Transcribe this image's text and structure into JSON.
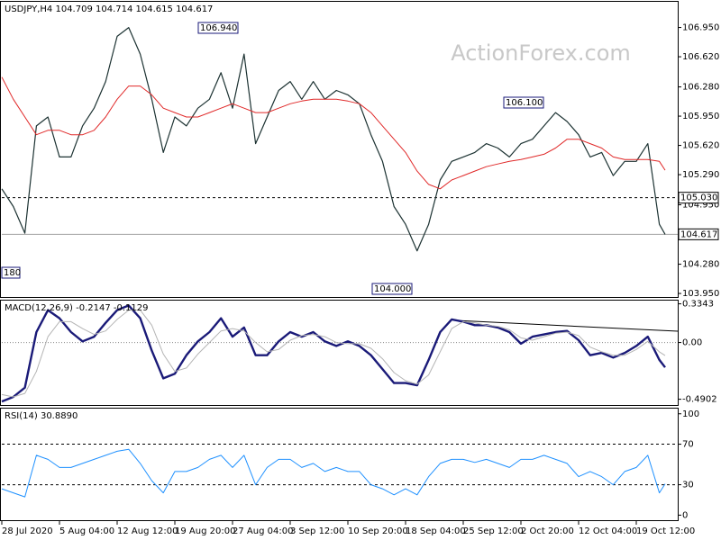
{
  "chart_data": [
    {
      "type": "line",
      "title": "USDJPY,H4  104.709 104.714 104.615 104.617",
      "watermark": "ActionForex.com",
      "x": [
        0,
        2,
        4,
        6,
        8,
        10,
        12,
        14,
        16,
        18,
        20,
        22,
        24,
        26,
        28,
        30,
        32,
        34,
        36,
        38,
        40,
        42,
        44,
        46,
        48,
        50,
        52,
        54,
        56,
        58,
        60,
        62,
        64,
        66,
        68,
        70,
        72,
        74,
        76,
        78,
        80,
        82,
        84,
        86,
        88,
        90,
        92,
        94,
        96,
        98,
        100,
        102,
        104,
        106,
        108,
        110,
        112,
        114,
        115
      ],
      "xlim": [
        0,
        117
      ],
      "xticks": [
        {
          "value": 0,
          "label": "28 Jul 2020"
        },
        {
          "value": 10,
          "label": "5 Aug 04:00"
        },
        {
          "value": 20,
          "label": "12 Aug 12:00"
        },
        {
          "value": 30,
          "label": "19 Aug 20:00"
        },
        {
          "value": 40,
          "label": "27 Aug 04:00"
        },
        {
          "value": 50,
          "label": "3 Sep 12:00"
        },
        {
          "value": 60,
          "label": "10 Sep 20:00"
        },
        {
          "value": 70,
          "label": "18 Sep 04:00"
        },
        {
          "value": 80,
          "label": "25 Sep 12:00"
        },
        {
          "value": 90,
          "label": "2 Oct 20:00"
        },
        {
          "value": 100,
          "label": "12 Oct 04:00"
        },
        {
          "value": 110,
          "label": "19 Oct 12:00"
        }
      ],
      "ylim": [
        103.91,
        107.25
      ],
      "yticks": [
        {
          "value": 106.95,
          "label": "106.950"
        },
        {
          "value": 106.62,
          "label": "106.620"
        },
        {
          "value": 106.28,
          "label": "106.280"
        },
        {
          "value": 105.95,
          "label": "105.950"
        },
        {
          "value": 105.62,
          "label": "105.620"
        },
        {
          "value": 105.29,
          "label": "105.290"
        },
        {
          "value": 104.95,
          "label": "104.950"
        },
        {
          "value": 104.28,
          "label": "104.280"
        },
        {
          "value": 103.95,
          "label": "103.950"
        }
      ],
      "levels": [
        {
          "value": 105.03,
          "label": "105.030",
          "style": "dashed",
          "tag": true
        },
        {
          "value": 104.617,
          "style": "solid",
          "tag": true
        }
      ],
      "annotations": [
        "106.940",
        "106.100",
        "104.000",
        "180"
      ],
      "series": [
        {
          "name": "USDJPY",
          "color": "#1c3232",
          "width": 1.2,
          "values": [
            105.13,
            104.93,
            104.63,
            105.84,
            105.94,
            105.49,
            105.49,
            105.84,
            106.04,
            106.34,
            106.85,
            106.95,
            106.65,
            106.14,
            105.54,
            105.94,
            105.84,
            106.04,
            106.14,
            106.44,
            106.04,
            106.65,
            105.64,
            105.94,
            106.24,
            106.34,
            106.14,
            106.34,
            106.14,
            106.24,
            106.19,
            106.09,
            105.74,
            105.44,
            104.93,
            104.73,
            104.43,
            104.73,
            105.23,
            105.44,
            105.49,
            105.54,
            105.64,
            105.59,
            105.49,
            105.64,
            105.69,
            105.84,
            105.99,
            105.89,
            105.74,
            105.49,
            105.54,
            105.28,
            105.44,
            105.44,
            105.64,
            104.73,
            104.617
          ]
        },
        {
          "name": "MA",
          "color": "#e02828",
          "width": 1,
          "values": [
            106.39,
            106.14,
            105.94,
            105.74,
            105.79,
            105.79,
            105.74,
            105.74,
            105.79,
            105.94,
            106.14,
            106.29,
            106.29,
            106.19,
            106.04,
            105.99,
            105.94,
            105.94,
            105.99,
            106.04,
            106.09,
            106.04,
            105.99,
            105.99,
            106.04,
            106.09,
            106.12,
            106.14,
            106.14,
            106.14,
            106.12,
            106.09,
            105.99,
            105.84,
            105.69,
            105.54,
            105.33,
            105.18,
            105.13,
            105.23,
            105.28,
            105.33,
            105.38,
            105.41,
            105.44,
            105.46,
            105.49,
            105.52,
            105.59,
            105.69,
            105.69,
            105.64,
            105.59,
            105.49,
            105.46,
            105.46,
            105.46,
            105.44,
            105.34
          ]
        }
      ]
    },
    {
      "type": "line",
      "title": "MACD(12,26,9) -0.2147 -0.1129",
      "ylim": [
        -0.54,
        0.37
      ],
      "yticks": [
        0.3343,
        {
          "value": 0,
          "label": "0.00"
        },
        -0.4902
      ],
      "levels": [
        {
          "value": 0,
          "style": "dotted"
        }
      ],
      "series": [
        {
          "name": "MACD",
          "color": "#1a1a78",
          "width": 2.4,
          "values": [
            -0.51,
            -0.47,
            -0.39,
            0.09,
            0.28,
            0.21,
            0.09,
            0.01,
            0.05,
            0.17,
            0.28,
            0.32,
            0.21,
            -0.07,
            -0.31,
            -0.27,
            -0.11,
            0.01,
            0.09,
            0.21,
            0.05,
            0.13,
            -0.11,
            -0.11,
            0.01,
            0.09,
            0.05,
            0.09,
            0.01,
            -0.03,
            0.01,
            -0.03,
            -0.11,
            -0.23,
            -0.35,
            -0.35,
            -0.37,
            -0.15,
            0.09,
            0.2,
            0.18,
            0.15,
            0.15,
            0.13,
            0.09,
            -0.01,
            0.05,
            0.07,
            0.09,
            0.1,
            0.02,
            -0.11,
            -0.09,
            -0.13,
            -0.09,
            -0.03,
            0.05,
            -0.15,
            -0.2147
          ]
        },
        {
          "name": "Signal",
          "color": "#b4b4b4",
          "width": 1,
          "values": [
            -0.45,
            -0.47,
            -0.44,
            -0.25,
            0.05,
            0.18,
            0.18,
            0.12,
            0.07,
            0.1,
            0.2,
            0.28,
            0.28,
            0.15,
            -0.1,
            -0.25,
            -0.22,
            -0.1,
            0,
            0.1,
            0.12,
            0.1,
            0,
            -0.08,
            -0.06,
            0.02,
            0.06,
            0.07,
            0.05,
            0,
            -0.01,
            -0.01,
            -0.05,
            -0.14,
            -0.26,
            -0.33,
            -0.36,
            -0.28,
            -0.08,
            0.12,
            0.18,
            0.17,
            0.15,
            0.14,
            0.11,
            0.04,
            0.02,
            0.05,
            0.08,
            0.09,
            0.06,
            -0.04,
            -0.08,
            -0.11,
            -0.11,
            -0.06,
            0.01,
            -0.08,
            -0.1129
          ]
        }
      ]
    },
    {
      "type": "line",
      "title": "RSI(14) 30.8890",
      "ylim": [
        -5,
        106
      ],
      "yticks": [
        100,
        70,
        30,
        0
      ],
      "levels": [
        {
          "value": 70,
          "style": "dashed"
        },
        {
          "value": 30,
          "style": "dashed"
        }
      ],
      "series": [
        {
          "name": "RSI",
          "color": "#1e90ff",
          "width": 1,
          "values": [
            26,
            22,
            18,
            59,
            55,
            47,
            47,
            51,
            55,
            59,
            63,
            65,
            51,
            34,
            22,
            43,
            43,
            47,
            55,
            59,
            47,
            59,
            30,
            47,
            55,
            55,
            47,
            51,
            43,
            47,
            43,
            43,
            30,
            26,
            20,
            26,
            20,
            38,
            51,
            55,
            55,
            52,
            55,
            51,
            47,
            55,
            55,
            59,
            55,
            51,
            38,
            43,
            38,
            30,
            43,
            47,
            59,
            22,
            30.889
          ]
        }
      ]
    }
  ]
}
